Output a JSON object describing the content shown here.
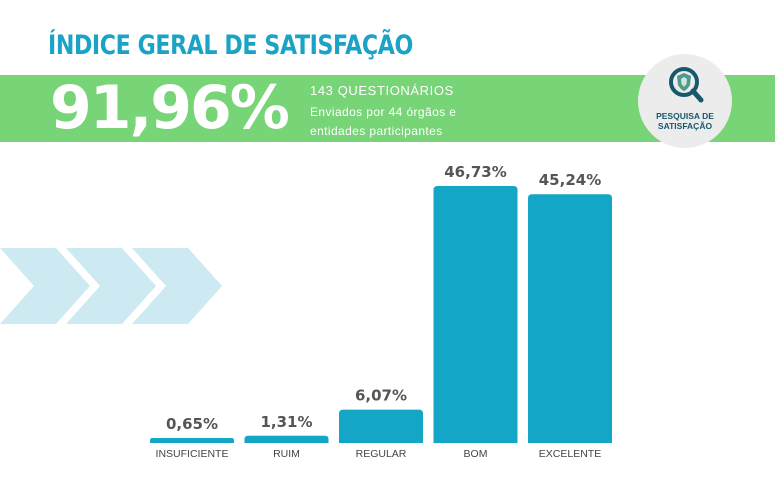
{
  "header": {
    "title": "ÍNDICE GERAL DE SATISFAÇÃO",
    "index_value": "91,96%",
    "questionnaires": "143 QUESTIONÁRIOS",
    "description": "Enviados por 44 órgãos e entidades participantes"
  },
  "logo": {
    "line1": "PESQUISA DE",
    "line2": "SATISFAÇÃO",
    "icon": "magnifier-shield-icon"
  },
  "colors": {
    "title": "#1ba3c6",
    "band": "#77d477",
    "bar": "#14a6c6",
    "chevron": "#cdeaf2",
    "logo_bg": "#ececec",
    "logo_dark": "#17586b"
  },
  "chart_data": {
    "type": "bar",
    "title": "",
    "xlabel": "",
    "ylabel": "",
    "categories": [
      "INSUFICIENTE",
      "RUIM",
      "REGULAR",
      "BOM",
      "EXCELENTE"
    ],
    "values": [
      0.65,
      1.31,
      6.07,
      46.73,
      45.24
    ],
    "value_labels": [
      "0,65%",
      "1,31%",
      "6,07%",
      "46,73%",
      "45,24%"
    ],
    "ylim": [
      0,
      46.73
    ],
    "grid": false,
    "legend": "none"
  }
}
